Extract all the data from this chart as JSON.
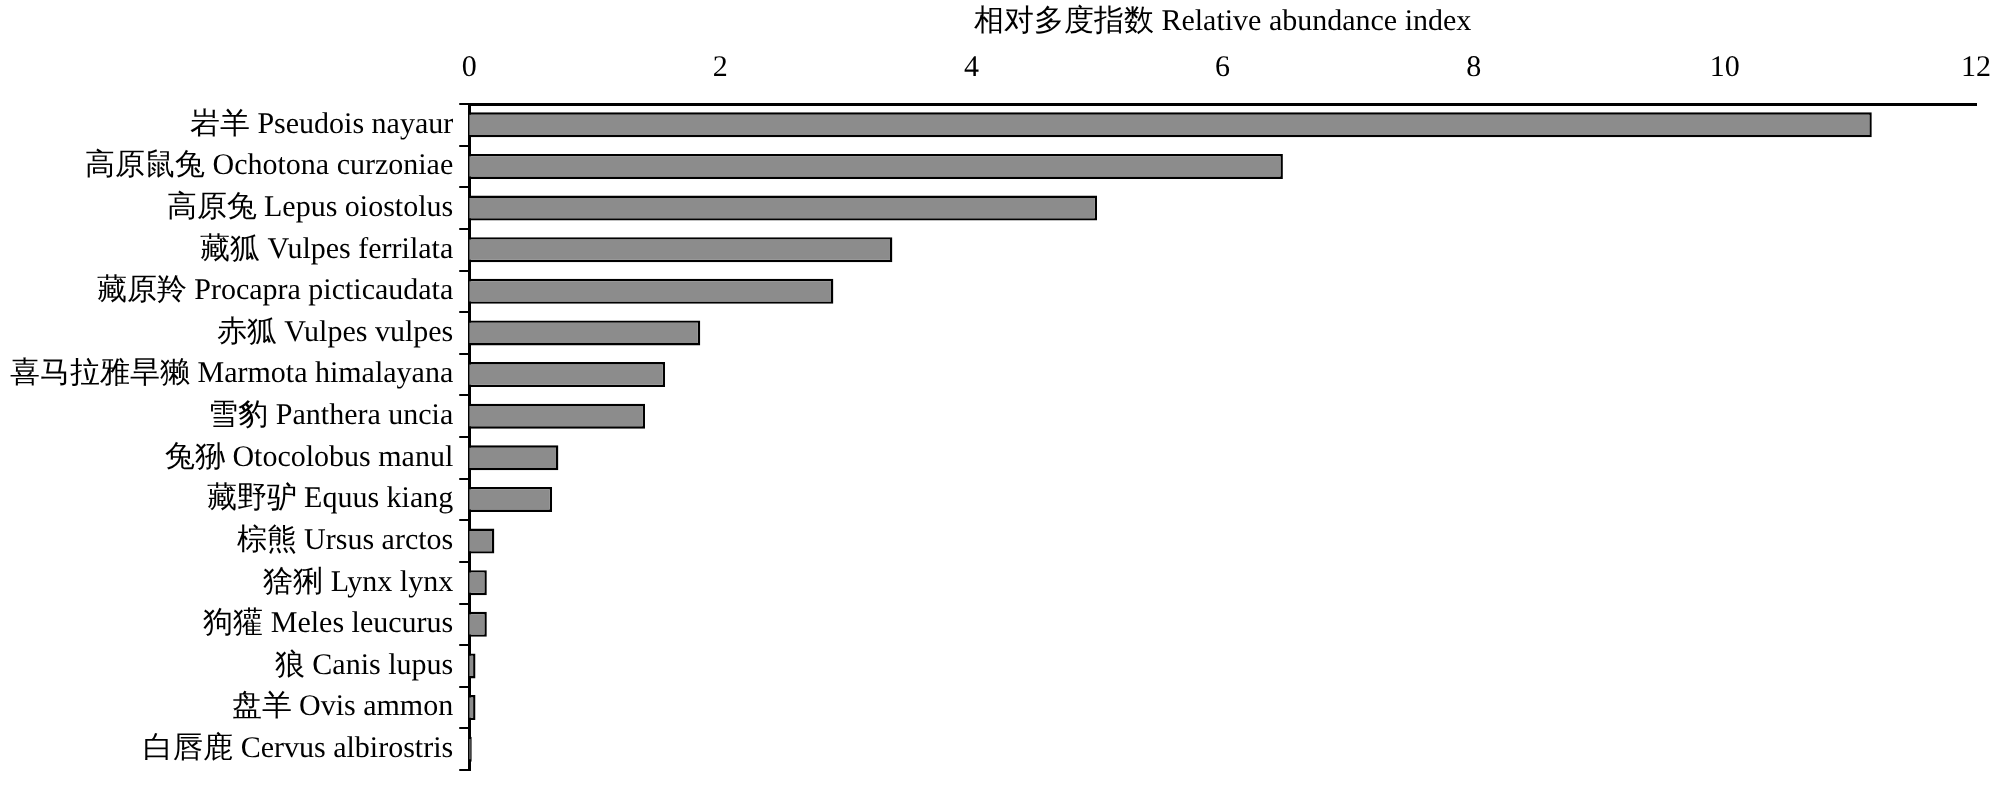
{
  "chart_data": {
    "type": "bar",
    "orientation": "horizontal",
    "xlabel": "相对多度指数 Relative abundance index",
    "categories": [
      "岩羊 Pseudois nayaur",
      "高原鼠兔 Ochotona curzoniae",
      "高原兔 Lepus oiostolus",
      "藏狐 Vulpes ferrilata",
      "藏原羚 Procapra picticaudata",
      "赤狐 Vulpes vulpes",
      "喜马拉雅旱獭 Marmota himalayana",
      "雪豹 Panthera uncia",
      "兔狲 Otocolobus manul",
      "藏野驴 Equus kiang",
      "棕熊 Ursus arctos",
      "猞猁 Lynx lynx",
      "狗獾 Meles leucurus",
      "狼 Canis lupus",
      "盘羊 Ovis ammon",
      "白唇鹿 Cervus albirostris"
    ],
    "values": [
      11.17,
      6.48,
      5.0,
      3.37,
      2.9,
      1.84,
      1.56,
      1.4,
      0.71,
      0.66,
      0.2,
      0.14,
      0.14,
      0.05,
      0.05,
      0.02
    ],
    "color": "#8c8c8c",
    "xlim": [
      0,
      12
    ],
    "xticks": [
      0,
      2,
      4,
      6,
      8,
      10,
      12
    ],
    "grid": false,
    "legend": false
  }
}
